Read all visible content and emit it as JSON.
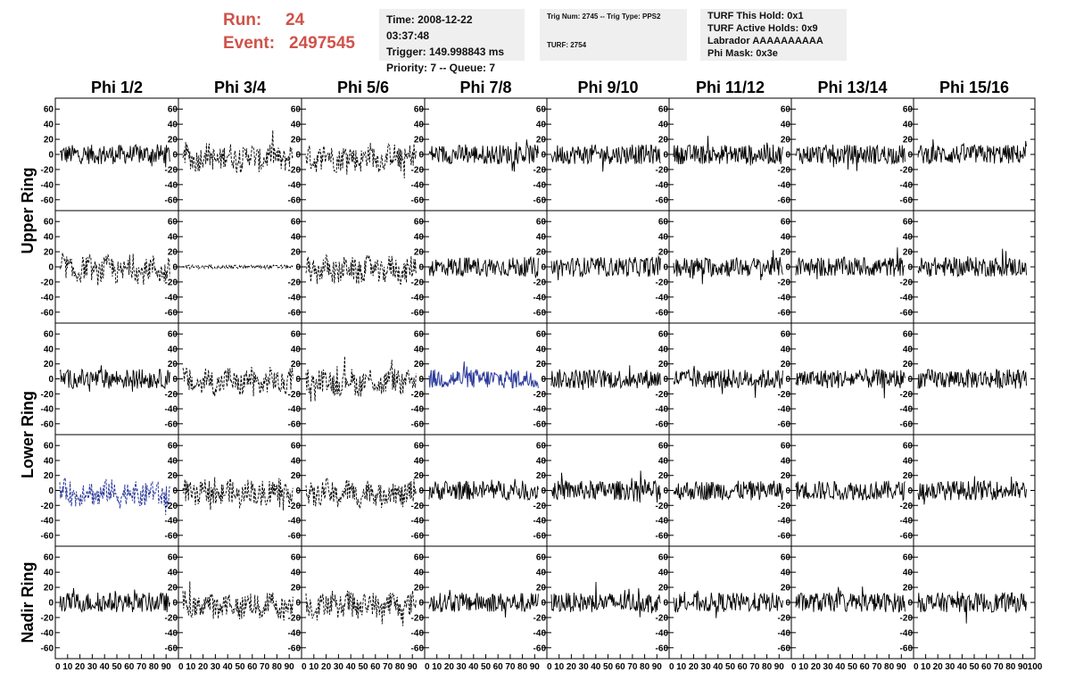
{
  "header": {
    "run_label": "Run:",
    "run_value": "24",
    "event_label": "Event:",
    "event_value": "2497545"
  },
  "time_box": {
    "time": "Time: 2008-12-22 03:37:48",
    "trigger": "Trigger: 149.998843 ms",
    "priority": "Priority: 7 -- Queue: 7"
  },
  "trig_box": {
    "trig": "Trig Num: 2745 -- Trig Type: PPS2",
    "turf": "TURF: 2754"
  },
  "turf_box": {
    "this_hold": "TURF This Hold: 0x1",
    "active_holds": "TURF Active Holds: 0x9",
    "labrador": "Labrador AAAAAAAAAA",
    "phi_mask": "Phi Mask: 0x3e"
  },
  "columns": [
    "Phi 1/2",
    "Phi 3/4",
    "Phi 5/6",
    "Phi 7/8",
    "Phi 9/10",
    "Phi 11/12",
    "Phi 13/14",
    "Phi 15/16"
  ],
  "rings": [
    "Upper Ring",
    "Lower Ring",
    "Nadir Ring"
  ],
  "y_ticks": [
    "60",
    "40",
    "20",
    "0",
    "-20",
    "-40",
    "-60"
  ],
  "y_ticks_nadir": [
    "60",
    "40",
    "20",
    "0",
    "-20",
    "-40",
    "-60"
  ],
  "x_ticks": [
    "0",
    "10",
    "20",
    "30",
    "40",
    "50",
    "60",
    "70",
    "80",
    "90",
    "100"
  ],
  "plot": {
    "y_range": [
      -65,
      65
    ],
    "x_range": [
      0,
      100
    ],
    "waveform_color": "#000000",
    "highlight_color": "#2b3a9a",
    "dashed_channels": [
      [
        1,
        0
      ],
      [
        2,
        0
      ],
      [
        0,
        1
      ],
      [
        1,
        1
      ],
      [
        2,
        1
      ],
      [
        1,
        2
      ],
      [
        2,
        2
      ],
      [
        0,
        3
      ],
      [
        1,
        3
      ],
      [
        2,
        3
      ],
      [
        1,
        4
      ],
      [
        2,
        4
      ]
    ],
    "highlighted_channels": [
      [
        3,
        2
      ],
      [
        0,
        3
      ]
    ],
    "flat_channels": [
      [
        1,
        1
      ]
    ]
  }
}
